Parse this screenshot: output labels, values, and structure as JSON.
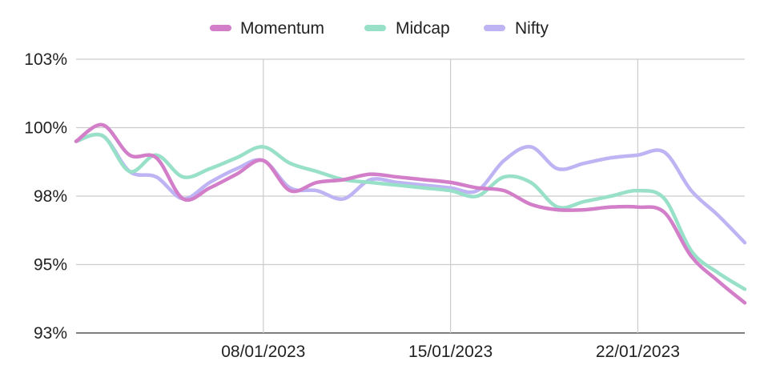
{
  "chart_data": {
    "type": "line",
    "title": "",
    "xlabel": "",
    "ylabel": "",
    "legend_position": "top-center",
    "grid": true,
    "x_range": [
      "2023-01-01",
      "2023-01-26"
    ],
    "ylim": [
      93,
      103
    ],
    "y_ticks": [
      "103%",
      "100%",
      "98%",
      "95%",
      "93%"
    ],
    "y_tick_values": [
      103,
      100.5,
      98,
      95.5,
      93
    ],
    "x_ticks": [
      "08/01/2023",
      "15/01/2023",
      "22/01/2023"
    ],
    "x_tick_dates": [
      "2023-01-08",
      "2023-01-15",
      "2023-01-22"
    ],
    "x": [
      "2023-01-01",
      "2023-01-02",
      "2023-01-03",
      "2023-01-04",
      "2023-01-05",
      "2023-01-06",
      "2023-01-07",
      "2023-01-08",
      "2023-01-09",
      "2023-01-10",
      "2023-01-11",
      "2023-01-12",
      "2023-01-13",
      "2023-01-14",
      "2023-01-15",
      "2023-01-16",
      "2023-01-17",
      "2023-01-18",
      "2023-01-19",
      "2023-01-20",
      "2023-01-21",
      "2023-01-22",
      "2023-01-23",
      "2023-01-24",
      "2023-01-25",
      "2023-01-26"
    ],
    "series": [
      {
        "name": "Momentum",
        "color": "#d27ec8",
        "values": [
          100.0,
          100.6,
          99.5,
          99.4,
          97.9,
          98.3,
          98.8,
          99.3,
          98.2,
          98.5,
          98.6,
          98.8,
          98.7,
          98.6,
          98.5,
          98.3,
          98.2,
          97.7,
          97.5,
          97.5,
          97.6,
          97.6,
          97.4,
          95.8,
          94.9,
          94.1
        ]
      },
      {
        "name": "Midcap",
        "color": "#98e0c8",
        "values": [
          100.0,
          100.2,
          98.9,
          99.5,
          98.7,
          99.0,
          99.4,
          99.8,
          99.2,
          98.9,
          98.6,
          98.5,
          98.4,
          98.3,
          98.2,
          98.0,
          98.7,
          98.5,
          97.6,
          97.8,
          98.0,
          98.2,
          97.9,
          96.0,
          95.2,
          94.6
        ]
      },
      {
        "name": "Nifty",
        "color": "#beb4f4",
        "values": [
          100.0,
          100.2,
          98.9,
          98.7,
          97.9,
          98.5,
          99.0,
          99.3,
          98.3,
          98.2,
          97.9,
          98.6,
          98.5,
          98.4,
          98.3,
          98.2,
          99.3,
          99.8,
          99.0,
          99.2,
          99.4,
          99.5,
          99.6,
          98.2,
          97.3,
          96.3
        ]
      }
    ]
  }
}
